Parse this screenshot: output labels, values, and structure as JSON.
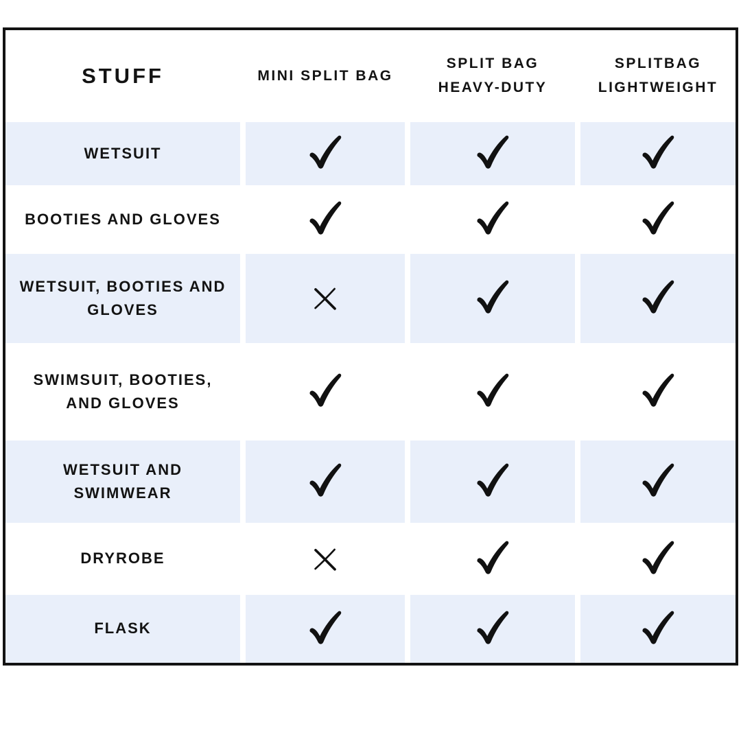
{
  "table": {
    "columns": [
      {
        "label": "STUFF"
      },
      {
        "label": "MINI SPLIT BAG"
      },
      {
        "label": "SPLIT BAG\nHEAVY-DUTY"
      },
      {
        "label": "SPLITBAG\nLIGHTWEIGHT"
      }
    ],
    "rows": [
      {
        "label": "WETSUIT",
        "values": [
          "check",
          "check",
          "check"
        ]
      },
      {
        "label": "BOOTIES AND GLOVES",
        "values": [
          "check",
          "check",
          "check"
        ]
      },
      {
        "label": "WETSUIT, BOOTIES AND\nGLOVES",
        "values": [
          "cross",
          "check",
          "check"
        ]
      },
      {
        "label": "SWIMSUIT, BOOTIES,\nAND GLOVES",
        "values": [
          "check",
          "check",
          "check"
        ]
      },
      {
        "label": "WETSUIT AND\nSWIMWEAR",
        "values": [
          "check",
          "check",
          "check"
        ]
      },
      {
        "label": "DRYROBE",
        "values": [
          "cross",
          "check",
          "check"
        ]
      },
      {
        "label": "FLASK",
        "values": [
          "check",
          "check",
          "check"
        ]
      }
    ]
  },
  "colors": {
    "row_alt": "#e9effa",
    "text": "#131313",
    "border": "#131313",
    "background": "#ffffff",
    "mark": "#111111"
  },
  "chart_data": {
    "type": "table",
    "title": "",
    "columns": [
      "STUFF",
      "MINI SPLIT BAG",
      "SPLIT BAG HEAVY-DUTY",
      "SPLITBAG LIGHTWEIGHT"
    ],
    "rows": [
      {
        "item": "WETSUIT",
        "mini_split_bag": true,
        "split_bag_heavy_duty": true,
        "splitbag_lightweight": true
      },
      {
        "item": "BOOTIES AND GLOVES",
        "mini_split_bag": true,
        "split_bag_heavy_duty": true,
        "splitbag_lightweight": true
      },
      {
        "item": "WETSUIT, BOOTIES AND GLOVES",
        "mini_split_bag": false,
        "split_bag_heavy_duty": true,
        "splitbag_lightweight": true
      },
      {
        "item": "SWIMSUIT, BOOTIES, AND GLOVES",
        "mini_split_bag": true,
        "split_bag_heavy_duty": true,
        "splitbag_lightweight": true
      },
      {
        "item": "WETSUIT AND SWIMWEAR",
        "mini_split_bag": true,
        "split_bag_heavy_duty": true,
        "splitbag_lightweight": true
      },
      {
        "item": "DRYROBE",
        "mini_split_bag": false,
        "split_bag_heavy_duty": true,
        "splitbag_lightweight": true
      },
      {
        "item": "FLASK",
        "mini_split_bag": true,
        "split_bag_heavy_duty": true,
        "splitbag_lightweight": true
      }
    ],
    "legend_note": "check = included, cross = not included (marks only, no text legend shown)"
  }
}
